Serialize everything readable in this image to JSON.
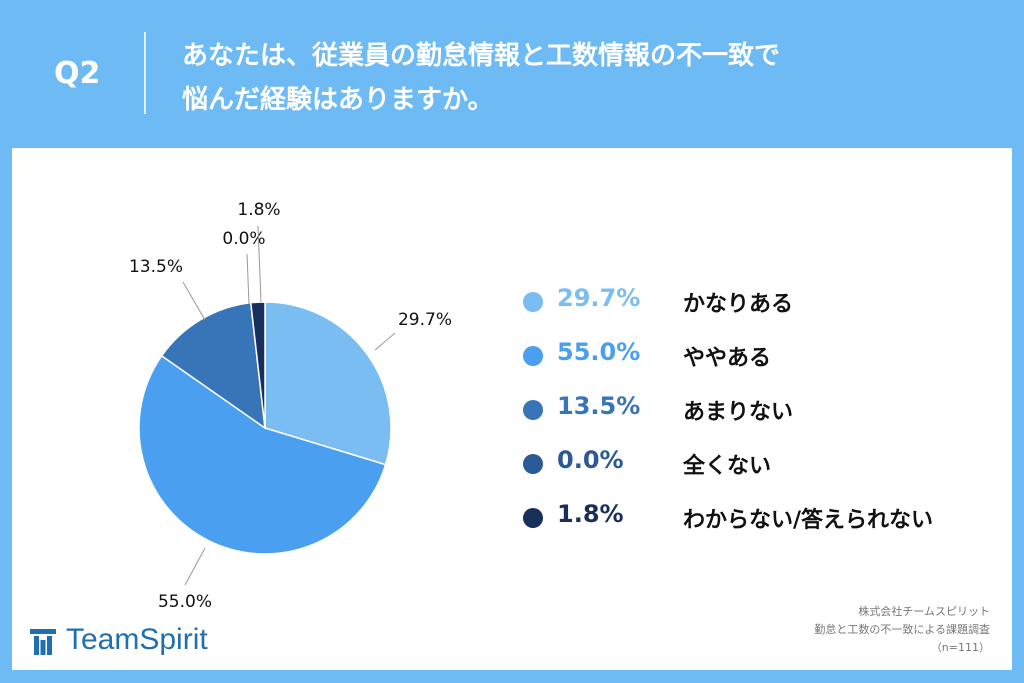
{
  "header": {
    "question_label": "Q2",
    "title_line1": "あなたは、従業員の勤怠情報と工数情報の不一致で",
    "title_line2": "悩んだ経験はありますか。"
  },
  "chart_data": {
    "type": "pie",
    "categories": [
      "かなりある",
      "ややある",
      "あまりない",
      "全くない",
      "わからない/答えられない"
    ],
    "values": [
      29.7,
      55.0,
      13.5,
      0.0,
      1.8
    ],
    "labels": [
      "29.7%",
      "55.0%",
      "13.5%",
      "0.0%",
      "1.8%"
    ],
    "colors": [
      "#79bdf2",
      "#4a9ff0",
      "#3875b8",
      "#2a5a95",
      "#182f5c"
    ],
    "start_angle": "12 o'clock",
    "direction": "clockwise",
    "legend_position": "right"
  },
  "brand": {
    "logo_text": "TeamSpirit"
  },
  "source": {
    "line1": "株式会社チームスピリット",
    "line2": "勤怠と工数の不一致による課題調査",
    "line3": "（n=111）"
  }
}
